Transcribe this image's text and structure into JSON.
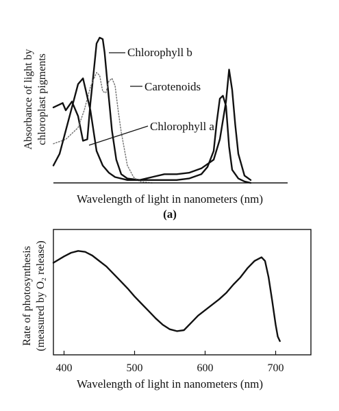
{
  "chart_data": [
    {
      "type": "line",
      "panel_label": "(a)",
      "xlabel": "Wavelength of light in nanometers (nm)",
      "ylabel": [
        "Absorbance of light by",
        "chloroplast pigments"
      ],
      "xlim": [
        380,
        760
      ],
      "ylim": [
        0,
        1
      ],
      "grid": false,
      "series": [
        {
          "name": "Chlorophyll b",
          "style": "solid",
          "x": [
            380,
            395,
            400,
            410,
            420,
            428,
            435,
            440,
            445,
            450,
            455,
            460,
            463,
            468,
            475,
            482,
            490,
            500,
            520,
            540,
            560,
            580,
            600,
            620,
            630,
            640,
            645,
            650,
            655,
            660,
            665,
            670,
            680,
            690,
            700
          ],
          "y": [
            0.52,
            0.55,
            0.5,
            0.56,
            0.46,
            0.29,
            0.3,
            0.55,
            0.75,
            0.96,
            1.0,
            0.99,
            0.9,
            0.67,
            0.36,
            0.16,
            0.06,
            0.03,
            0.02,
            0.02,
            0.02,
            0.02,
            0.03,
            0.06,
            0.11,
            0.22,
            0.42,
            0.58,
            0.6,
            0.53,
            0.25,
            0.09,
            0.03,
            0.01,
            0.0
          ]
        },
        {
          "name": "Carotenoids",
          "style": "dotted",
          "x": [
            380,
            400,
            420,
            430,
            440,
            450,
            455,
            460,
            465,
            470,
            475,
            480,
            485,
            490,
            500,
            510,
            520,
            540
          ],
          "y": [
            0.27,
            0.3,
            0.38,
            0.5,
            0.66,
            0.76,
            0.74,
            0.63,
            0.62,
            0.7,
            0.72,
            0.67,
            0.5,
            0.35,
            0.12,
            0.04,
            0.01,
            0.0
          ]
        },
        {
          "name": "Chlorophyll a",
          "style": "solid",
          "x": [
            380,
            390,
            400,
            410,
            420,
            428,
            440,
            450,
            460,
            470,
            480,
            500,
            520,
            540,
            560,
            580,
            600,
            620,
            640,
            650,
            660,
            665,
            670,
            675,
            680,
            690,
            700
          ],
          "y": [
            0.12,
            0.2,
            0.36,
            0.52,
            0.68,
            0.72,
            0.5,
            0.22,
            0.12,
            0.07,
            0.04,
            0.02,
            0.02,
            0.04,
            0.06,
            0.06,
            0.07,
            0.1,
            0.16,
            0.3,
            0.56,
            0.78,
            0.64,
            0.4,
            0.2,
            0.05,
            0.02
          ]
        }
      ]
    },
    {
      "type": "line",
      "xlabel": "Wavelength of light in nanometers (nm)",
      "ylabel": [
        "Rate of photosynthesis",
        "(measured by O₂ release)"
      ],
      "xlim": [
        385,
        750
      ],
      "ylim": [
        0,
        1
      ],
      "xticks": [
        400,
        500,
        600,
        700
      ],
      "grid": false,
      "series": [
        {
          "style": "solid",
          "x": [
            385,
            400,
            410,
            420,
            430,
            440,
            450,
            460,
            470,
            480,
            490,
            500,
            510,
            520,
            530,
            540,
            550,
            560,
            570,
            580,
            590,
            600,
            610,
            620,
            630,
            640,
            650,
            660,
            670,
            680,
            685,
            690,
            695,
            700,
            703,
            706
          ],
          "y": [
            0.86,
            0.93,
            0.97,
            0.99,
            0.98,
            0.94,
            0.88,
            0.82,
            0.74,
            0.66,
            0.58,
            0.49,
            0.41,
            0.33,
            0.25,
            0.18,
            0.13,
            0.11,
            0.12,
            0.2,
            0.28,
            0.34,
            0.4,
            0.46,
            0.53,
            0.62,
            0.7,
            0.8,
            0.88,
            0.92,
            0.88,
            0.7,
            0.45,
            0.18,
            0.05,
            0.0
          ]
        }
      ]
    }
  ]
}
